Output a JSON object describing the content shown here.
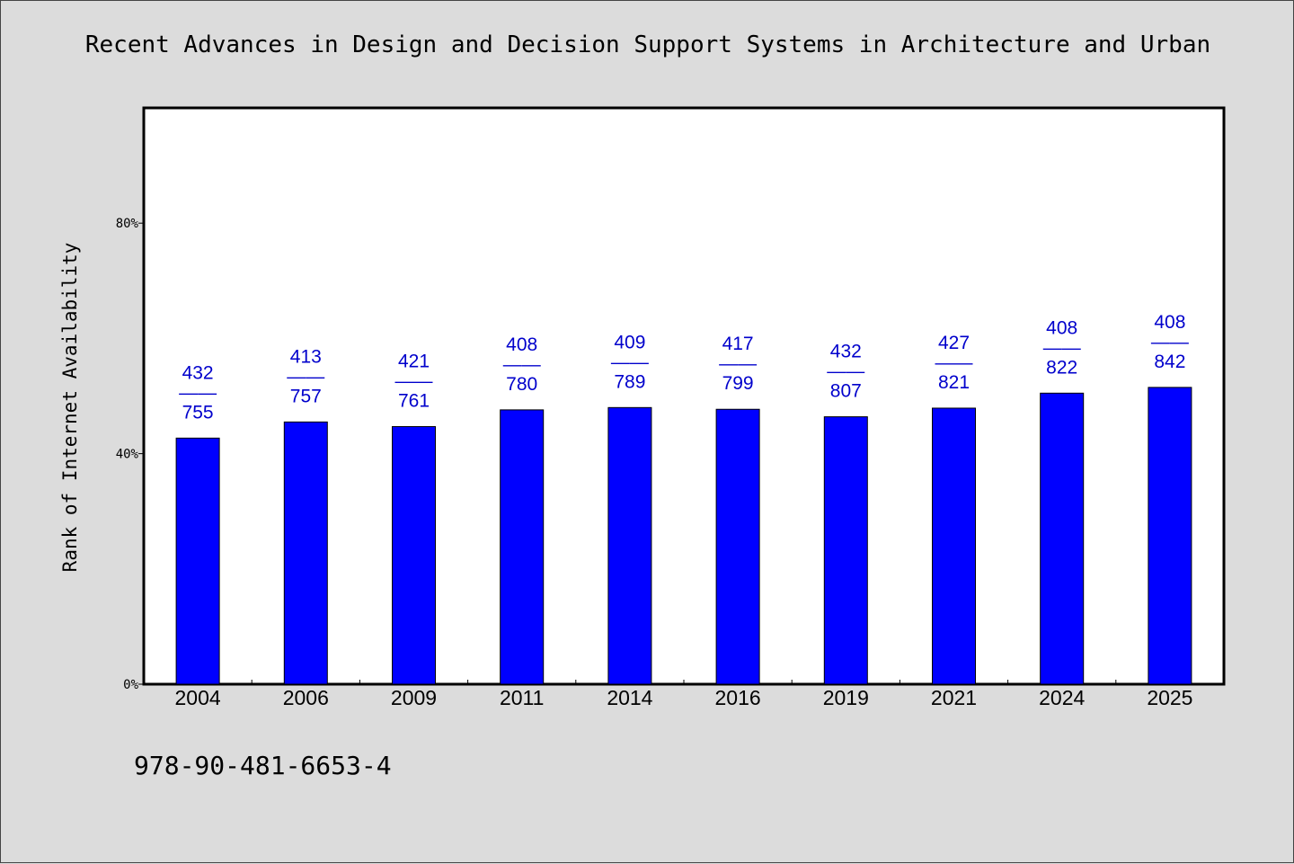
{
  "title": "Recent Advances in Design and Decision Support Systems in Architecture and Urban",
  "isbn": "978-90-481-6653-4",
  "colors": {
    "background": "#dcdcdc",
    "plot_background": "#ffffff",
    "bar_fill": "#0000ff",
    "bar_stroke": "#000000",
    "label_color": "#0000cc"
  },
  "chart_data": {
    "type": "bar",
    "title": "Recent Advances in Design and Decision Support Systems in Architecture and Urban",
    "xlabel": "",
    "ylabel": "Rank of Internet Availability",
    "ylim": [
      0,
      100
    ],
    "yticks": [
      0,
      40,
      80
    ],
    "ytick_labels": [
      "0%",
      "40%",
      "80%"
    ],
    "grid": false,
    "categories": [
      "2004",
      "2006",
      "2009",
      "2011",
      "2014",
      "2016",
      "2019",
      "2021",
      "2024",
      "2025"
    ],
    "values": [
      42.7,
      45.5,
      44.7,
      47.6,
      48.0,
      47.7,
      46.4,
      47.9,
      50.5,
      51.5
    ],
    "labels": [
      {
        "rank": "432",
        "total": "755"
      },
      {
        "rank": "413",
        "total": "757"
      },
      {
        "rank": "421",
        "total": "761"
      },
      {
        "rank": "408",
        "total": "780"
      },
      {
        "rank": "409",
        "total": "789"
      },
      {
        "rank": "417",
        "total": "799"
      },
      {
        "rank": "432",
        "total": "807"
      },
      {
        "rank": "427",
        "total": "821"
      },
      {
        "rank": "408",
        "total": "822"
      },
      {
        "rank": "408",
        "total": "842"
      }
    ],
    "label_separator": "——"
  }
}
